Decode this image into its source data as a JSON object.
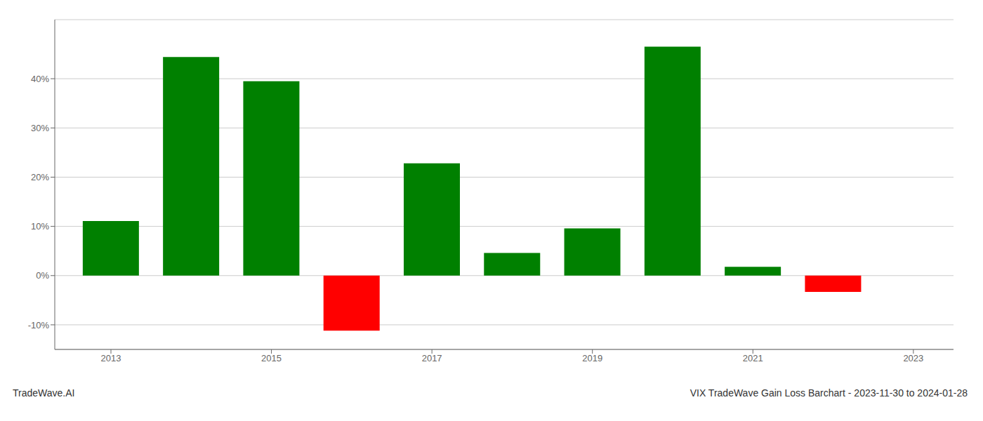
{
  "chart_data": {
    "type": "bar",
    "x": [
      2013,
      2014,
      2015,
      2016,
      2017,
      2018,
      2019,
      2020,
      2021,
      2022
    ],
    "values": [
      0.111,
      0.444,
      0.395,
      -0.112,
      0.228,
      0.046,
      0.096,
      0.465,
      0.018,
      -0.033
    ],
    "colors": [
      "#008000",
      "#008000",
      "#008000",
      "#ff0000",
      "#008000",
      "#008000",
      "#008000",
      "#008000",
      "#008000",
      "#ff0000"
    ],
    "xlim": [
      2012.3,
      2023.5
    ],
    "xticks": [
      2013,
      2015,
      2017,
      2019,
      2021,
      2023
    ],
    "ylim": [
      -0.15,
      0.52
    ],
    "yticks": [
      {
        "value": -0.1,
        "label": "-10%"
      },
      {
        "value": 0.0,
        "label": "0%"
      },
      {
        "value": 0.1,
        "label": "10%"
      },
      {
        "value": 0.2,
        "label": "20%"
      },
      {
        "value": 0.3,
        "label": "30%"
      },
      {
        "value": 0.4,
        "label": "40%"
      }
    ],
    "grid": true,
    "annotations": [
      "TradeWave.AI",
      "VIX TradeWave Gain Loss Barchart - 2023-11-30 to 2024-01-28"
    ]
  }
}
